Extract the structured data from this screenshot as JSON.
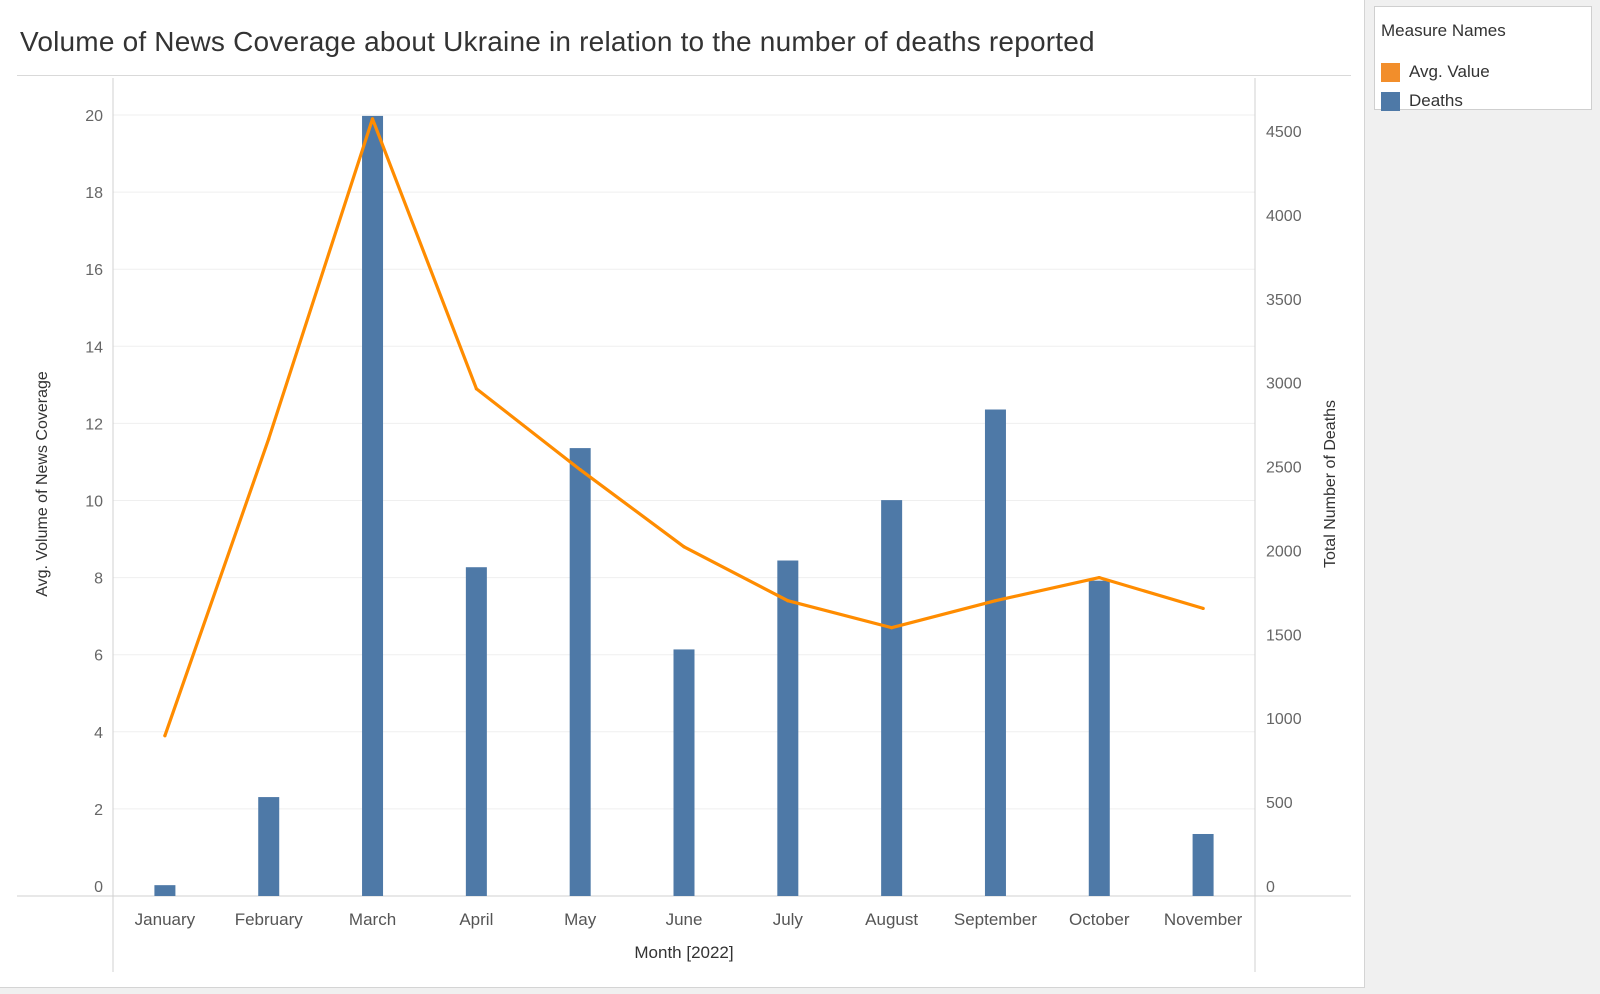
{
  "title": "Volume of News Coverage about Ukraine in relation to the number of deaths reported",
  "legend": {
    "title": "Measure Names",
    "items": [
      {
        "label": "Avg. Value",
        "color": "#f28e2b"
      },
      {
        "label": "Deaths",
        "color": "#4e79a7"
      }
    ]
  },
  "chart_data": {
    "type": "bar",
    "combo": "bar + line, dual axis",
    "xlabel": "Month [2022]",
    "categories": [
      "January",
      "February",
      "March",
      "April",
      "May",
      "June",
      "July",
      "August",
      "September",
      "October",
      "November"
    ],
    "y_left": {
      "label": "Avg. Volume of News Coverage",
      "range": [
        0,
        20
      ],
      "ticks": [
        0,
        2,
        4,
        6,
        8,
        10,
        12,
        14,
        16,
        18,
        20
      ]
    },
    "y_right": {
      "label": "Total Number of Deaths",
      "range": [
        0,
        4500
      ],
      "ticks": [
        0,
        500,
        1000,
        1500,
        2000,
        2500,
        3000,
        3500,
        4000,
        4500
      ]
    },
    "series": [
      {
        "name": "Deaths",
        "type": "bar",
        "axis": "right",
        "color": "#4e79a7",
        "values": [
          5,
          530,
          4590,
          1900,
          2610,
          1410,
          1940,
          2300,
          2840,
          1820,
          310
        ]
      },
      {
        "name": "Avg. Value",
        "type": "line",
        "axis": "left",
        "color": "#ff8c00",
        "values": [
          3.9,
          11.6,
          19.9,
          12.9,
          10.8,
          8.8,
          7.4,
          6.7,
          7.4,
          8.0,
          7.2
        ]
      }
    ],
    "grid": true,
    "legend_position": "top-right"
  }
}
